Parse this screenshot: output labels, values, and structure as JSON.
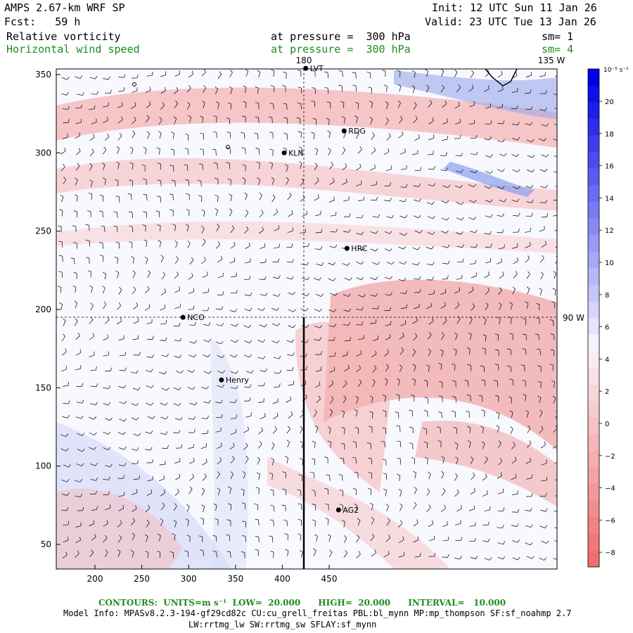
{
  "header": {
    "model": "AMPS 2.67-km WRF SP",
    "init": "Init: 12 UTC Sun 11 Jan 26",
    "fcst": "Fcst:   59 h",
    "valid": "Valid: 23 UTC Tue 13 Jan 26",
    "field1": "Relative vorticity",
    "field1_level": "at pressure =  300 hPa",
    "field1_sm": "sm= 1",
    "field2": "Horizontal wind speed",
    "field2_level": "at pressure =  300 hPa",
    "field2_sm": "sm= 4"
  },
  "map": {
    "x_ticks": [
      "200",
      "250",
      "300",
      "350",
      "400",
      "450"
    ],
    "y_ticks": [
      "350",
      "300",
      "250",
      "200",
      "150",
      "100",
      "50"
    ],
    "meridian_180": "180",
    "meridian_135w": "135 W",
    "meridian_90w": "90 W",
    "stations": [
      {
        "label": "LVT",
        "x": 425,
        "y": 354
      },
      {
        "label": "RDG",
        "x": 466,
        "y": 314
      },
      {
        "label": "KLN",
        "x": 402,
        "y": 300
      },
      {
        "label": "HRC",
        "x": 469,
        "y": 239
      },
      {
        "label": "NCO",
        "x": 294,
        "y": 195
      },
      {
        "label": "Henry",
        "x": 335,
        "y": 155
      },
      {
        "label": "AG2",
        "x": 460,
        "y": 72
      }
    ],
    "colors": {
      "positive_max": "#0000e6",
      "negative_max": "#f06e6e",
      "neutral": "#f8f8ff",
      "barb": "#000000"
    }
  },
  "colorbar": {
    "unit": "10⁻⁵ s⁻¹",
    "labels": [
      "20",
      "18",
      "16",
      "14",
      "12",
      "10",
      "8",
      "6",
      "4",
      "2",
      "0",
      "−2",
      "−4",
      "−6",
      "−8"
    ]
  },
  "footer": {
    "contours": "CONTOURS:  UNITS=m s⁻¹  LOW=  20.000      HIGH=  20.000      INTERVAL=   10.000",
    "model_info": "Model Info: MPASv8.2.3-194-gf29cd82c CU:cu_grell_freitas PBL:bl_mynn MP:mp_thompson SF:sf_noahmp 2.7",
    "model_info2": "LW:rrtmg_lw SW:rrtmg_sw SFLAY:sf_mynn"
  }
}
